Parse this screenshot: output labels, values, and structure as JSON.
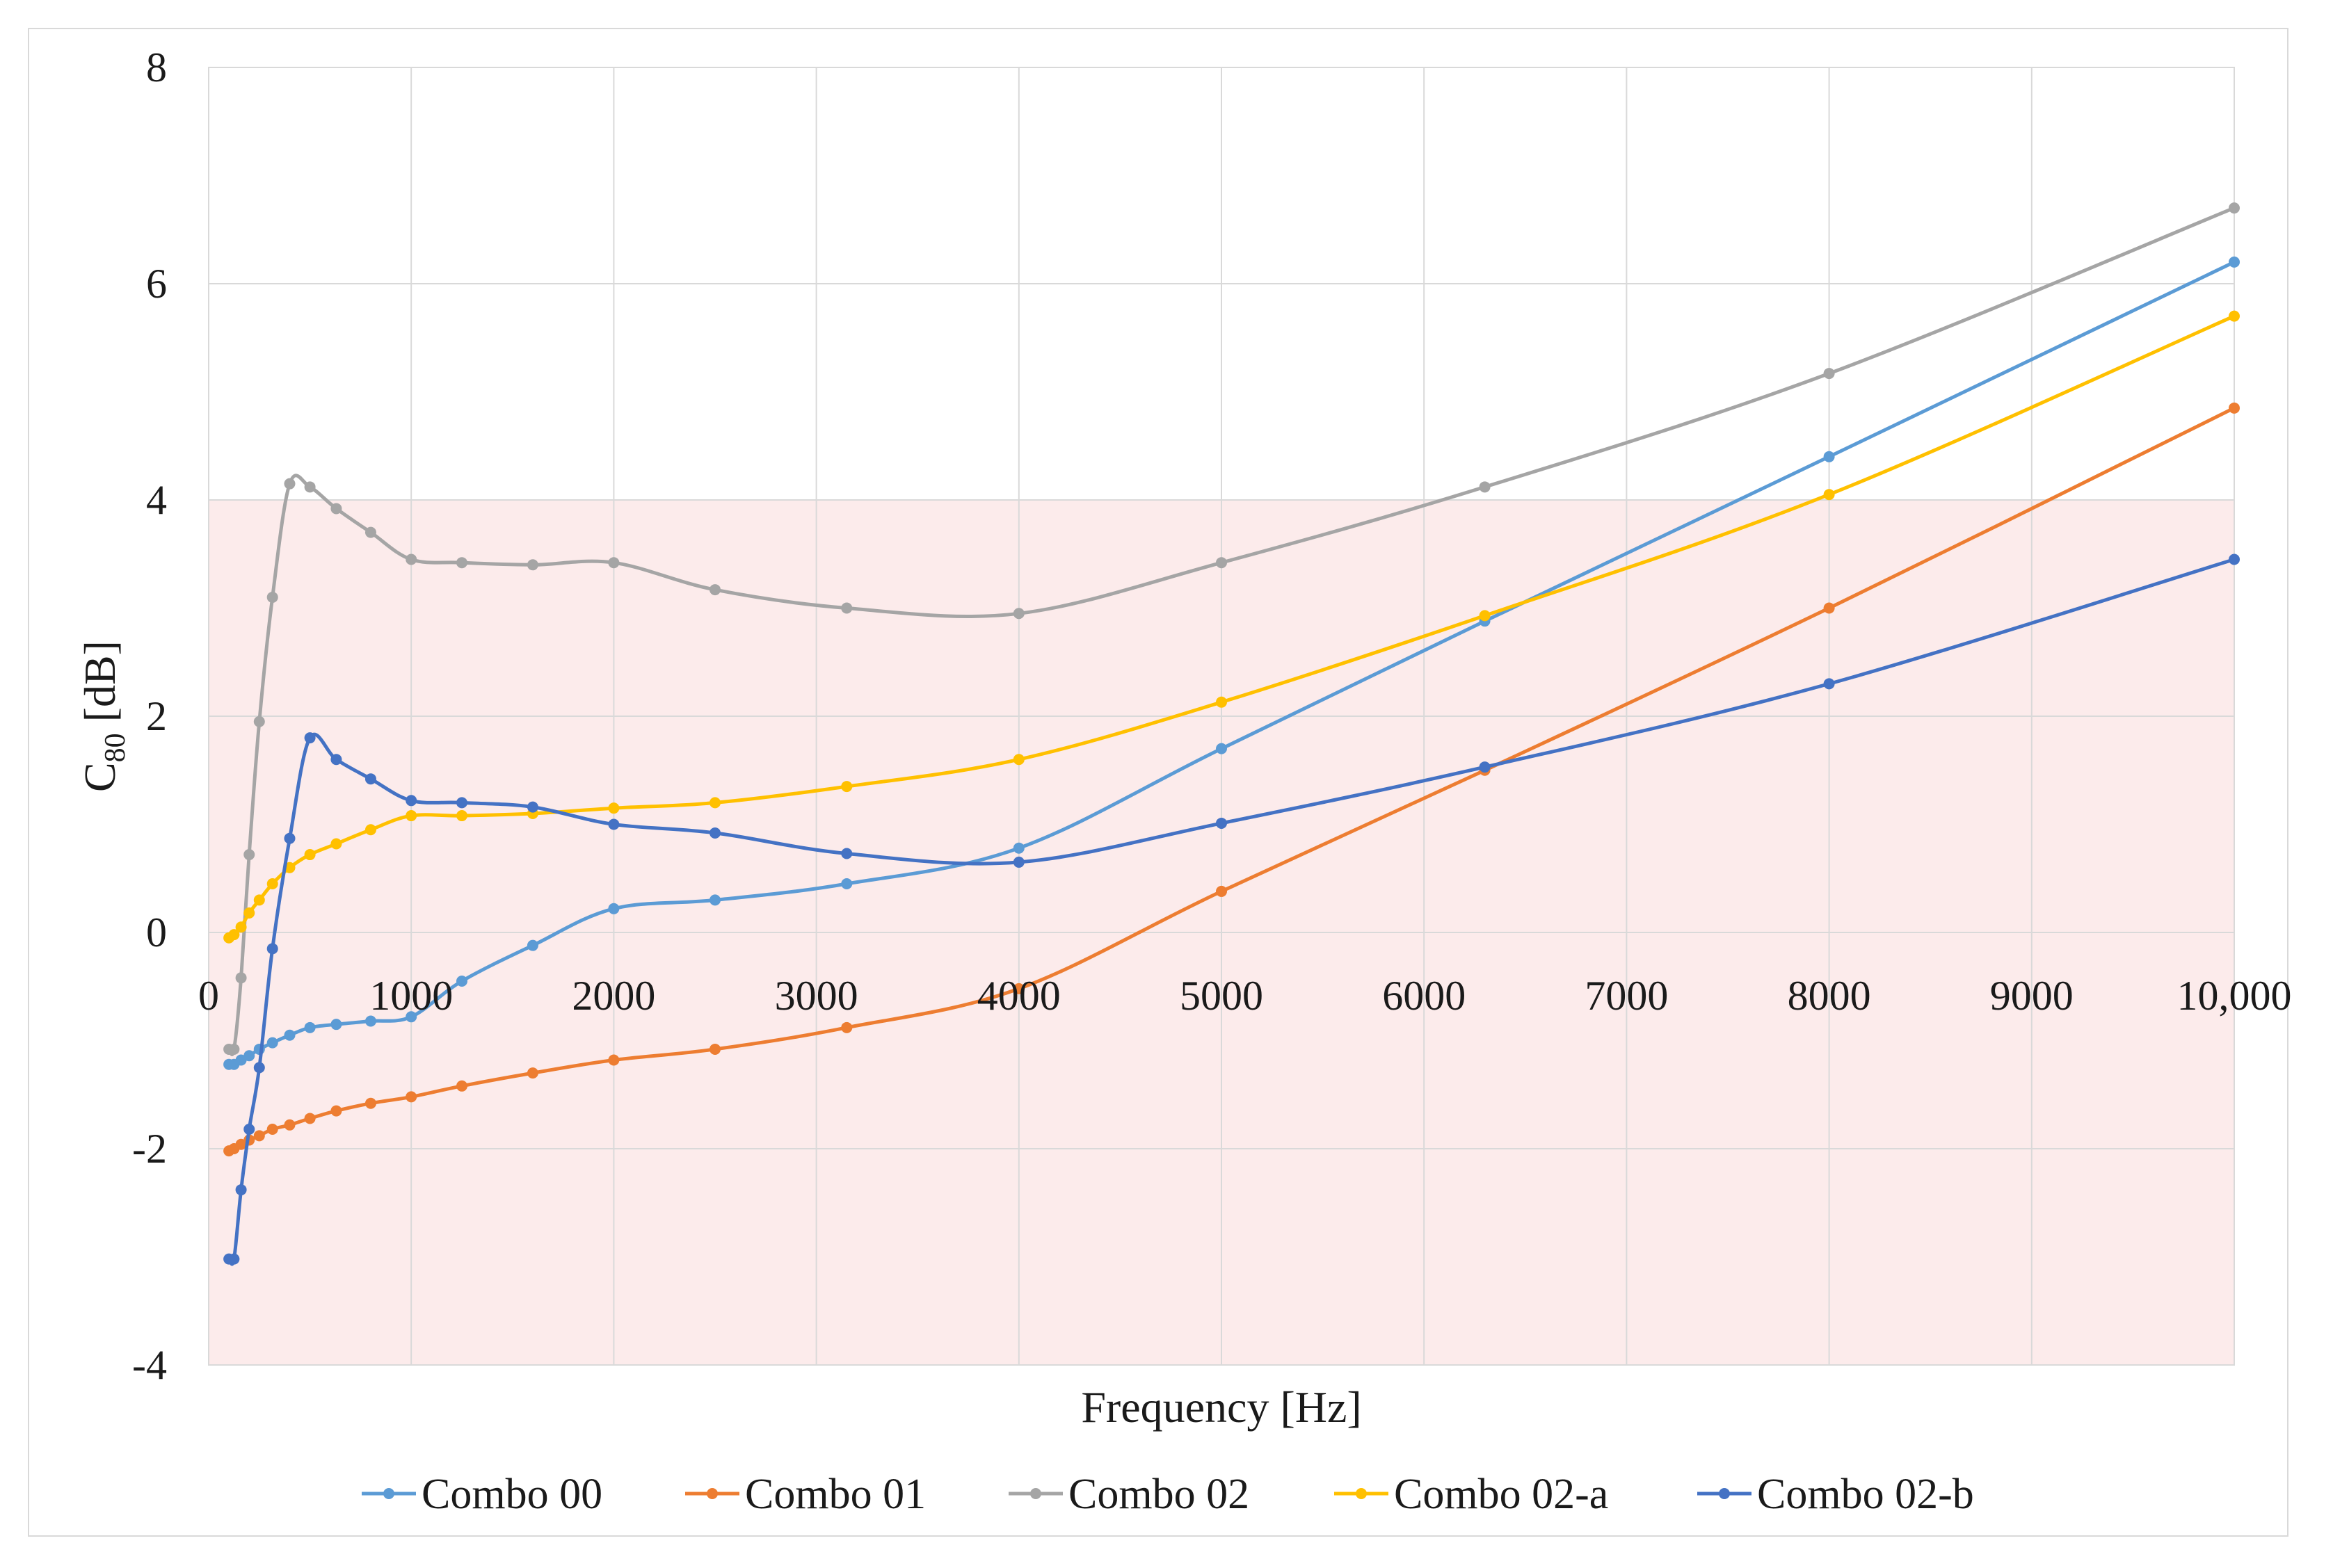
{
  "chart_data": {
    "type": "line",
    "title": "",
    "xlabel": "Frequency [Hz]",
    "ylabel_main": "C",
    "ylabel_sub": "80",
    "ylabel_unit": " [dB]",
    "xlim": [
      0,
      10000
    ],
    "ylim": [
      -4,
      8
    ],
    "x_ticks": [
      0,
      1000,
      2000,
      3000,
      4000,
      5000,
      6000,
      7000,
      8000,
      9000,
      10000
    ],
    "x_tick_labels": [
      "0",
      "1000",
      "2000",
      "3000",
      "4000",
      "5000",
      "6000",
      "7000",
      "8000",
      "9000",
      "10,000"
    ],
    "y_ticks": [
      -4,
      -2,
      0,
      2,
      4,
      6,
      8
    ],
    "y_tick_labels": [
      "-4",
      "-2",
      "0",
      "2",
      "4",
      "6",
      "8"
    ],
    "grid": true,
    "legend_position": "bottom",
    "shaded_band": {
      "from": -4,
      "to": 4,
      "color": "#fcebeb"
    },
    "x": [
      100,
      125,
      160,
      200,
      250,
      315,
      400,
      500,
      630,
      800,
      1000,
      1250,
      1600,
      2000,
      2500,
      3150,
      4000,
      5000,
      6300,
      8000,
      10000
    ],
    "series": [
      {
        "name": "Combo 00",
        "color": "#5b9bd5",
        "values": [
          -1.22,
          -1.22,
          -1.18,
          -1.14,
          -1.08,
          -1.02,
          -0.95,
          -0.88,
          -0.85,
          -0.82,
          -0.78,
          -0.45,
          -0.12,
          0.22,
          0.3,
          0.45,
          0.78,
          1.7,
          2.88,
          4.4,
          6.2
        ]
      },
      {
        "name": "Combo 01",
        "color": "#ed7d31",
        "values": [
          -2.02,
          -2.0,
          -1.96,
          -1.92,
          -1.88,
          -1.82,
          -1.78,
          -1.72,
          -1.65,
          -1.58,
          -1.52,
          -1.42,
          -1.3,
          -1.18,
          -1.08,
          -0.88,
          -0.52,
          0.38,
          1.5,
          3.0,
          4.85
        ]
      },
      {
        "name": "Combo 02",
        "color": "#a5a5a5",
        "values": [
          -1.08,
          -1.08,
          -0.42,
          0.72,
          1.95,
          3.1,
          4.15,
          4.12,
          3.92,
          3.7,
          3.45,
          3.42,
          3.4,
          3.42,
          3.17,
          3.0,
          2.95,
          3.42,
          4.12,
          5.17,
          6.7
        ]
      },
      {
        "name": "Combo 02-a",
        "color": "#ffc000",
        "values": [
          -0.05,
          -0.02,
          0.05,
          0.18,
          0.3,
          0.45,
          0.6,
          0.72,
          0.82,
          0.95,
          1.08,
          1.08,
          1.1,
          1.15,
          1.2,
          1.35,
          1.6,
          2.13,
          2.93,
          4.05,
          5.7
        ]
      },
      {
        "name": "Combo 02-b",
        "color": "#4472c4",
        "values": [
          -3.02,
          -3.02,
          -2.38,
          -1.82,
          -1.25,
          -0.15,
          0.87,
          1.8,
          1.6,
          1.42,
          1.22,
          1.2,
          1.16,
          1.0,
          0.92,
          0.73,
          0.65,
          1.01,
          1.53,
          2.3,
          3.45
        ]
      }
    ]
  }
}
